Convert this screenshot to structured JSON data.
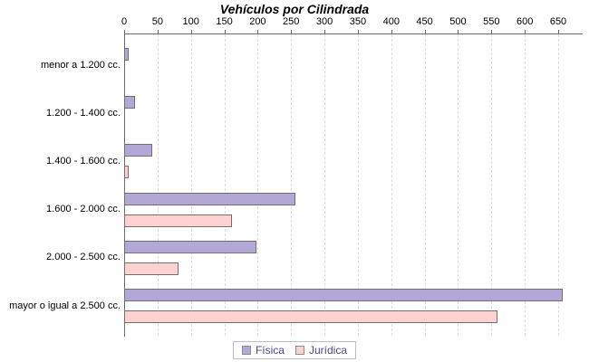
{
  "title": "Vehículos por Cilindrada",
  "chart_data": {
    "type": "bar",
    "orientation": "horizontal",
    "title": "Vehículos por Cilindrada",
    "categories": [
      "menor a 1.200 cc.",
      "1.200 - 1.400 cc.",
      "1.400 - 1.600 cc.",
      "1.600 - 2.000 cc.",
      "2.000 - 2.500 cc.",
      "mayor o igual a 2.500 cc."
    ],
    "series": [
      {
        "name": "Física",
        "color": "#b3a8d5",
        "values": [
          5,
          15,
          41,
          255,
          197,
          655
        ]
      },
      {
        "name": "Jurídica",
        "color": "#ffd1d1",
        "values": [
          0,
          0,
          6,
          160,
          80,
          558
        ]
      }
    ],
    "xticks": [
      0,
      50,
      100,
      150,
      200,
      250,
      300,
      350,
      400,
      450,
      500,
      550,
      600,
      650
    ],
    "xlim": [
      0,
      687
    ],
    "grid": "vertical-dashed",
    "axis_position": "top",
    "legend_position": "bottom",
    "colors": {
      "axis": "#6b6b6b",
      "grid": "#dcdcdc",
      "bar_border": "#6f6f6f",
      "title_text": "#000000",
      "tick_text": "#000000",
      "category_text": "#000000",
      "legend_text": "#4a4a8f",
      "legend_border": "#bcbcd2",
      "background": "#ffffff"
    }
  }
}
